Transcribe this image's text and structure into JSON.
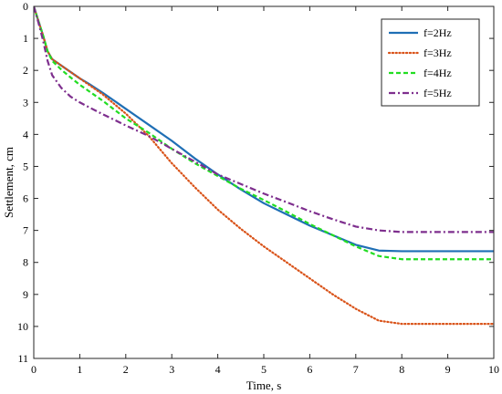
{
  "chart_data": {
    "type": "line",
    "xlabel": "Time, s",
    "ylabel": "Settlement, cm",
    "xlim": [
      0,
      10
    ],
    "ylim": [
      0,
      11
    ],
    "y_axis_inverted": true,
    "xticks": [
      "0",
      "1",
      "2",
      "3",
      "4",
      "5",
      "6",
      "7",
      "8",
      "9",
      "10"
    ],
    "yticks": [
      "0",
      "1",
      "2",
      "3",
      "4",
      "5",
      "6",
      "7",
      "8",
      "9",
      "10",
      "11"
    ],
    "grid": false,
    "legend_position": "top-right",
    "series": [
      {
        "name": "f=2Hz",
        "color": "#1f6fb5",
        "dash": "solid",
        "x": [
          0,
          0.1,
          0.2,
          0.3,
          0.4,
          0.6,
          0.8,
          1.0,
          1.2,
          1.5,
          2.0,
          2.5,
          3.0,
          3.5,
          4.0,
          4.5,
          5.0,
          5.5,
          6.0,
          6.5,
          7.0,
          7.5,
          8.0,
          8.5,
          9.0,
          9.5,
          10.0
        ],
        "y": [
          0,
          0.45,
          0.9,
          1.4,
          1.65,
          1.85,
          2.05,
          2.25,
          2.42,
          2.7,
          3.2,
          3.7,
          4.2,
          4.75,
          5.25,
          5.72,
          6.15,
          6.5,
          6.85,
          7.15,
          7.45,
          7.63,
          7.65,
          7.65,
          7.65,
          7.65,
          7.65
        ]
      },
      {
        "name": "f=3Hz",
        "color": "#d95319",
        "dash": "dotted",
        "x": [
          0,
          0.1,
          0.2,
          0.3,
          0.4,
          0.6,
          0.8,
          1.0,
          1.2,
          1.5,
          2.0,
          2.5,
          3.0,
          3.5,
          4.0,
          4.5,
          5.0,
          5.5,
          6.0,
          6.5,
          7.0,
          7.5,
          8.0,
          8.5,
          9.0,
          9.5,
          10.0
        ],
        "y": [
          0,
          0.45,
          0.9,
          1.4,
          1.65,
          1.85,
          2.05,
          2.25,
          2.45,
          2.75,
          3.35,
          4.05,
          4.9,
          5.65,
          6.35,
          6.95,
          7.5,
          8.0,
          8.5,
          9.0,
          9.45,
          9.82,
          9.92,
          9.92,
          9.92,
          9.92,
          9.92
        ]
      },
      {
        "name": "f=4Hz",
        "color": "#22dd22",
        "dash": "dashed",
        "x": [
          0,
          0.1,
          0.2,
          0.3,
          0.4,
          0.6,
          0.8,
          1.0,
          1.2,
          1.5,
          2.0,
          2.5,
          3.0,
          3.5,
          4.0,
          4.5,
          5.0,
          5.5,
          6.0,
          6.5,
          7.0,
          7.5,
          8.0,
          8.5,
          9.0,
          9.5,
          10.0
        ],
        "y": [
          0,
          0.45,
          0.9,
          1.4,
          1.7,
          1.98,
          2.22,
          2.45,
          2.65,
          2.95,
          3.5,
          3.95,
          4.45,
          4.9,
          5.3,
          5.7,
          6.05,
          6.42,
          6.8,
          7.15,
          7.5,
          7.8,
          7.9,
          7.9,
          7.9,
          7.9,
          7.9
        ]
      },
      {
        "name": "f=5Hz",
        "color": "#7e2f8e",
        "dash": "dashdot",
        "x": [
          0,
          0.1,
          0.2,
          0.3,
          0.4,
          0.6,
          0.8,
          1.0,
          1.2,
          1.5,
          2.0,
          2.5,
          3.0,
          3.5,
          4.0,
          4.5,
          5.0,
          5.5,
          6.0,
          6.5,
          7.0,
          7.5,
          8.0,
          8.5,
          9.0,
          9.5,
          10.0
        ],
        "y": [
          0,
          0.5,
          1.05,
          1.7,
          2.15,
          2.55,
          2.82,
          3.0,
          3.15,
          3.37,
          3.72,
          4.05,
          4.45,
          4.85,
          5.25,
          5.55,
          5.85,
          6.12,
          6.4,
          6.65,
          6.88,
          7.0,
          7.05,
          7.05,
          7.05,
          7.05,
          7.05
        ]
      }
    ]
  }
}
